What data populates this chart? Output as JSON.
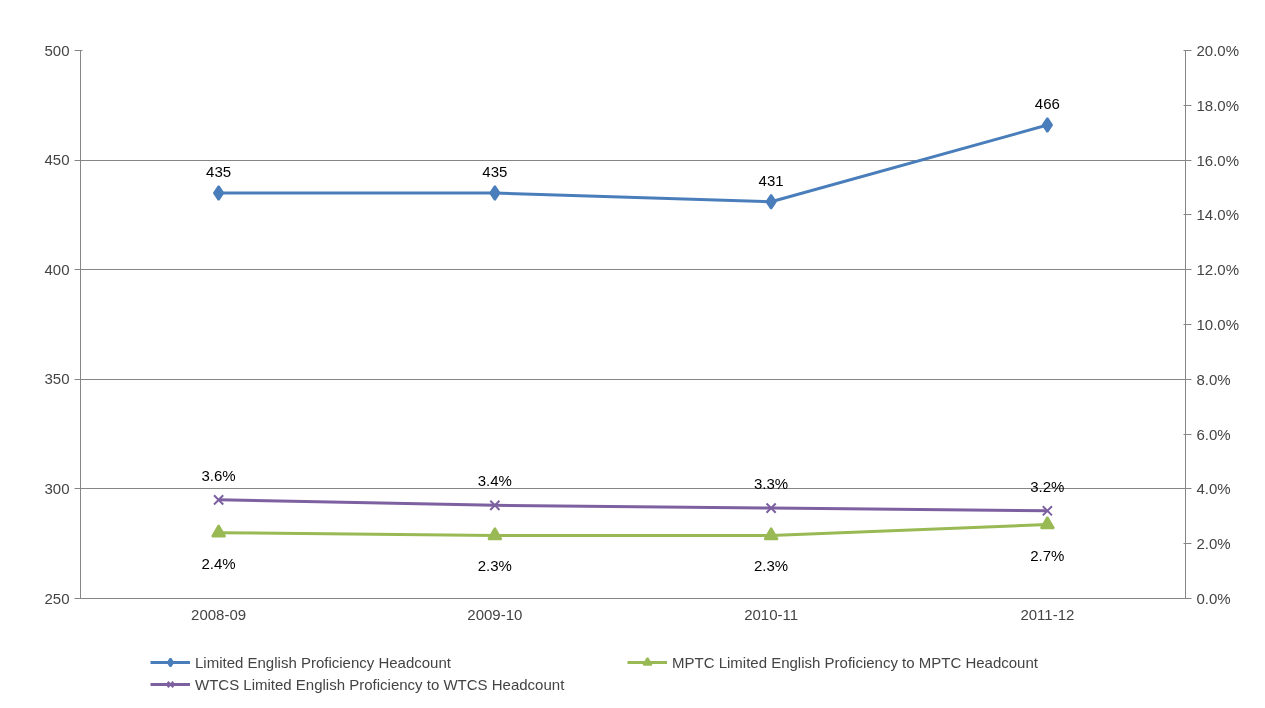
{
  "chart_data": {
    "type": "line",
    "categories": [
      "2008-09",
      "2009-10",
      "2010-11",
      "2011-12"
    ],
    "ylim": [
      250,
      500
    ],
    "yticks": [
      250,
      300,
      350,
      400,
      450,
      500
    ],
    "y2lim": [
      0,
      20
    ],
    "y2ticks": [
      {
        "value": 0,
        "label": "0.0%"
      },
      {
        "value": 2,
        "label": "2.0%"
      },
      {
        "value": 4,
        "label": "4.0%"
      },
      {
        "value": 6,
        "label": "6.0%"
      },
      {
        "value": 8,
        "label": "8.0%"
      },
      {
        "value": 10,
        "label": "10.0%"
      },
      {
        "value": 12,
        "label": "12.0%"
      },
      {
        "value": 14,
        "label": "14.0%"
      },
      {
        "value": 16,
        "label": "16.0%"
      },
      {
        "value": 18,
        "label": "18.0%"
      },
      {
        "value": 20,
        "label": "20.0%"
      }
    ],
    "grid": "y",
    "legend": "bottom",
    "data_labels": true,
    "series": [
      {
        "name": "Limited English Proficiency Headcount",
        "color": "#4a7ebb",
        "marker": "diamond",
        "values": [
          435,
          435,
          431,
          466
        ],
        "value_labels": [
          "435",
          "435",
          "431",
          "466"
        ]
      },
      {
        "name": "MPTC Limited English Proficiency to MPTC Headcount",
        "color": "#98b954",
        "marker": "triangle",
        "axis": "y2",
        "values": [
          2.4,
          2.3,
          2.3,
          2.7
        ],
        "value_labels": [
          "2.4%",
          "2.3%",
          "2.3%",
          "2.7%"
        ]
      },
      {
        "name": "WTCS Limited English Proficiency to WTCS Headcount",
        "color": "#7d60a0",
        "marker": "cross",
        "axis": "y2",
        "values": [
          3.6,
          3.4,
          3.3,
          3.2
        ],
        "value_labels": [
          "3.6%",
          "3.4%",
          "3.3%",
          "3.2%"
        ]
      }
    ]
  }
}
